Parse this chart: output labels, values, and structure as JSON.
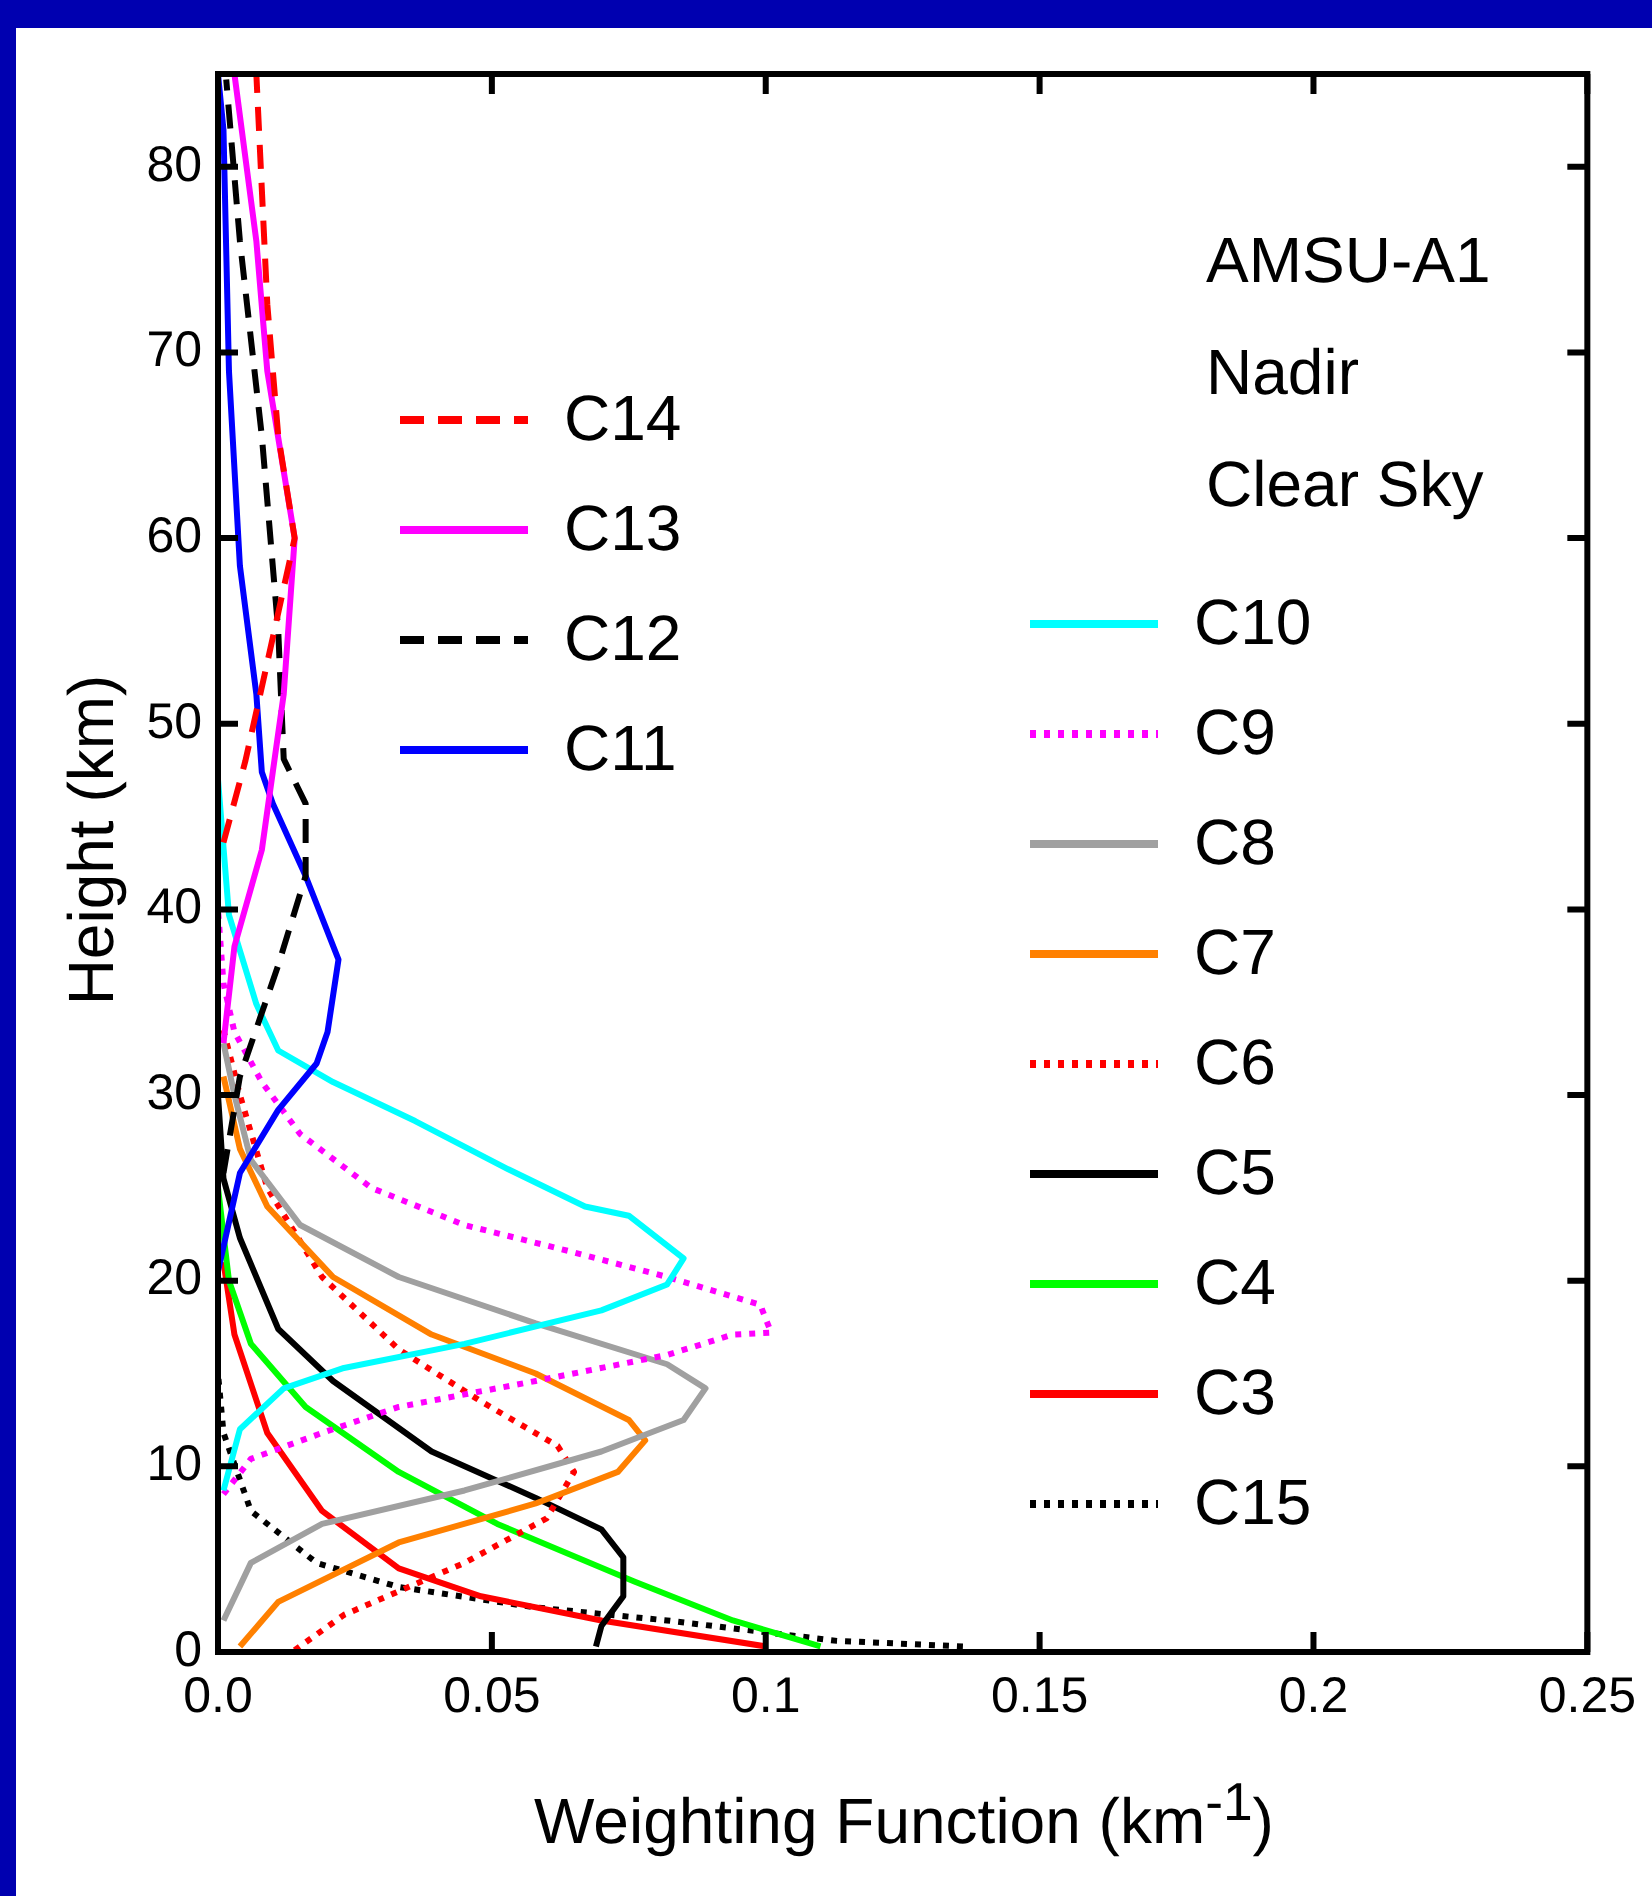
{
  "chart_data": {
    "type": "line",
    "xlabel": "Weighting Function (km$^{-1}$)",
    "ylabel": "Height (km)",
    "annotations": [
      "AMSU-A1",
      "Nadir",
      "Clear Sky"
    ],
    "xlim": [
      0,
      0.25
    ],
    "xticks": [
      {
        "value": 0,
        "label": "0.0"
      },
      0.05,
      0.1,
      0.15,
      0.2,
      0.25
    ],
    "ylim": [
      0,
      85
    ],
    "yticks": [
      0,
      10,
      20,
      30,
      40,
      50,
      60,
      70,
      80
    ],
    "grid": false,
    "legend": "right",
    "series": [
      {
        "name": "C14",
        "color": "#ff0000",
        "line_style": "dashed",
        "x": [
          0.001,
          0.005,
          0.009,
          0.014,
          0.011,
          0.009,
          0.007
        ],
        "values": [
          43.6,
          48,
          53.3,
          60,
          65.5,
          72.6,
          85
        ]
      },
      {
        "name": "C13",
        "color": "#ff00ff",
        "line_style": "solid",
        "x": [
          0.001,
          0.003,
          0.008,
          0.01,
          0.012,
          0.014,
          0.009,
          0.007,
          0.003
        ],
        "values": [
          32.8,
          38,
          43.2,
          47.4,
          51.6,
          60,
          69,
          76,
          85
        ]
      },
      {
        "name": "C12",
        "color": "#000000",
        "line_style": "dashed",
        "x": [
          0.001,
          0.004,
          0.011,
          0.016,
          0.016,
          0.012,
          0.011,
          0.008,
          0.004,
          0.0015
        ],
        "values": [
          25.8,
          31,
          37,
          41.8,
          45.7,
          48.1,
          55,
          65.5,
          76,
          84.7
        ]
      },
      {
        "name": "C11",
        "color": "#0000ff",
        "line_style": "solid",
        "x": [
          0,
          0.004,
          0.011,
          0.018,
          0.02,
          0.022,
          0.016,
          0.01,
          0.008,
          0.007,
          0.004,
          0.002,
          0.001,
          0
        ],
        "values": [
          20.5,
          25.8,
          29.2,
          31.7,
          33.4,
          37.3,
          41.8,
          45.7,
          47.4,
          51.6,
          58.5,
          69,
          82,
          85
        ]
      },
      {
        "name": "C10",
        "color": "#00ffff",
        "line_style": "solid",
        "x": [
          0.001,
          0.004,
          0.012,
          0.023,
          0.045,
          0.07,
          0.082,
          0.085,
          0.075,
          0.067,
          0.053,
          0.036,
          0.021,
          0.011,
          0.007,
          0.002,
          0
        ],
        "values": [
          8.7,
          12,
          14.2,
          15.3,
          16.6,
          18.4,
          19.8,
          21.2,
          23.5,
          24,
          26,
          28.6,
          30.7,
          32.4,
          34.9,
          39.7,
          47
        ]
      },
      {
        "name": "C9",
        "color": "#ff00ff",
        "line_style": "dotted",
        "x": [
          0.001,
          0.006,
          0.019,
          0.033,
          0.058,
          0.082,
          0.094,
          0.101,
          0.099,
          0.082,
          0.064,
          0.045,
          0.028,
          0.015,
          0.008,
          0.003,
          0.001,
          0
        ],
        "values": [
          8.5,
          10.4,
          11.8,
          13.2,
          14.6,
          16,
          17.1,
          17.2,
          18.7,
          20.2,
          21.6,
          23,
          25,
          27.9,
          30.7,
          33.4,
          36,
          40
        ]
      },
      {
        "name": "C8",
        "color": "#a0a0a0",
        "line_style": "solid",
        "x": [
          0.001,
          0.006,
          0.019,
          0.045,
          0.07,
          0.085,
          0.089,
          0.082,
          0.058,
          0.033,
          0.015,
          0.006,
          0.003,
          0.001
        ],
        "values": [
          1.7,
          4.8,
          6.9,
          8.7,
          10.8,
          12.5,
          14.2,
          15.5,
          17.7,
          20.2,
          23,
          26.5,
          30,
          32.8
        ]
      },
      {
        "name": "C7",
        "color": "#ff8000",
        "line_style": "solid",
        "x": [
          0.004,
          0.011,
          0.033,
          0.058,
          0.073,
          0.078,
          0.075,
          0.058,
          0.039,
          0.021,
          0.009,
          0.004,
          0.001
        ],
        "values": [
          0.3,
          2.7,
          5.9,
          8,
          9.7,
          11.4,
          12.5,
          15,
          17.1,
          20.2,
          24,
          27.1,
          31
        ]
      },
      {
        "name": "C6",
        "color": "#ff0000",
        "line_style": "dotted",
        "x": [
          0.014,
          0.023,
          0.045,
          0.06,
          0.065,
          0.062,
          0.048,
          0.033,
          0.019,
          0.009,
          0.004,
          0.001
        ],
        "values": [
          0.1,
          2,
          4.8,
          7.2,
          9.7,
          11.1,
          13.5,
          16.3,
          20.2,
          25,
          30,
          33.5
        ]
      },
      {
        "name": "C5",
        "color": "#000000",
        "line_style": "solid",
        "x": [
          0.069,
          0.07,
          0.074,
          0.074,
          0.07,
          0.058,
          0.039,
          0.021,
          0.011,
          0.004,
          0.001,
          0
        ],
        "values": [
          0.3,
          1.4,
          3,
          5.1,
          6.6,
          8.3,
          10.8,
          14.6,
          17.4,
          22.3,
          25.5,
          30
        ]
      },
      {
        "name": "C4",
        "color": "#00ff00",
        "line_style": "solid",
        "x": [
          0.11,
          0.094,
          0.076,
          0.051,
          0.033,
          0.016,
          0.006,
          0.002,
          0
        ],
        "values": [
          0.3,
          1.7,
          3.8,
          6.9,
          9.7,
          13.2,
          16.6,
          20,
          25
        ]
      },
      {
        "name": "C3",
        "color": "#ff0000",
        "line_style": "solid",
        "x": [
          0.1,
          0.07,
          0.048,
          0.033,
          0.019,
          0.009,
          0.003,
          0.001
        ],
        "values": [
          0.3,
          1.7,
          3,
          4.5,
          7.6,
          11.8,
          17.1,
          21
        ]
      },
      {
        "name": "C15",
        "color": "#000000",
        "line_style": "dotted",
        "x": [
          0.136,
          0.113,
          0.082,
          0.058,
          0.033,
          0.018,
          0.006,
          0.001,
          0
        ],
        "values": [
          0.3,
          0.6,
          1.7,
          2.4,
          3.5,
          4.8,
          7.6,
          11.8,
          15
        ]
      }
    ]
  }
}
